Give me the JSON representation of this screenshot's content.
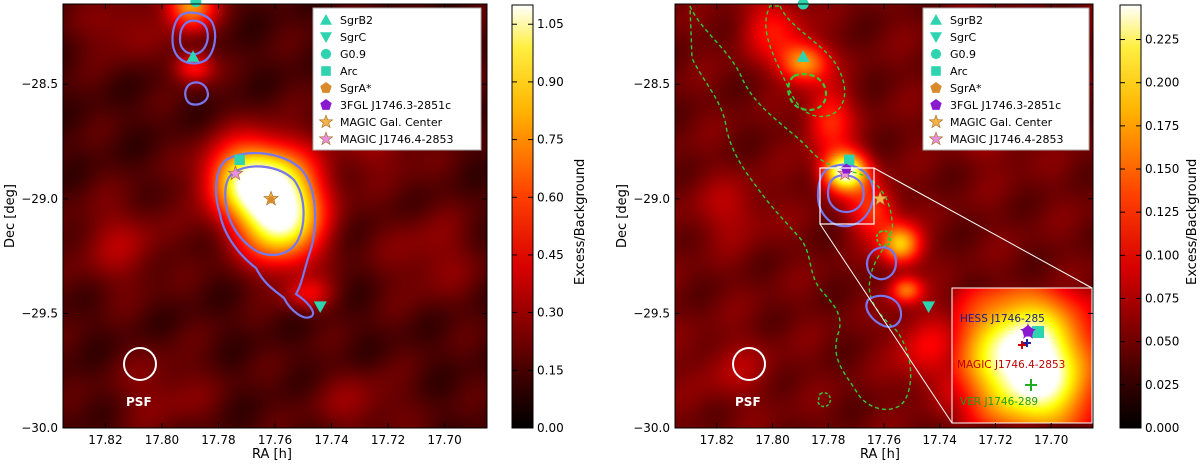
{
  "chart_data": [
    {
      "type": "heatmap",
      "title": "",
      "xlabel": "RA [h]",
      "ylabel": "Dec [deg]",
      "xlim": [
        17.835,
        17.685
      ],
      "ylim": [
        -30.0,
        -28.15
      ],
      "x_ticks": [
        "17.82",
        "17.80",
        "17.78",
        "17.76",
        "17.74",
        "17.72",
        "17.70"
      ],
      "y_ticks": [
        "−28.5",
        "−29.0",
        "−29.5",
        "−30.0"
      ],
      "x_tick_values": [
        17.82,
        17.8,
        17.78,
        17.76,
        17.74,
        17.72,
        17.7
      ],
      "y_tick_values": [
        -28.5,
        -29.0,
        -29.5,
        -30.0
      ],
      "colorbar": {
        "label": "Excess/Background",
        "min": 0.0,
        "max": 1.1,
        "ticks": [
          "0.00",
          "0.15",
          "0.30",
          "0.45",
          "0.60",
          "0.75",
          "0.90",
          "1.05"
        ],
        "tick_values": [
          0.0,
          0.15,
          0.3,
          0.45,
          0.6,
          0.75,
          0.9,
          1.05
        ]
      },
      "markers": [
        {
          "name": "SgrB2",
          "ra": 17.789,
          "dec": -28.38,
          "shape": "triangle-up",
          "color": "#2ed4b0"
        },
        {
          "name": "SgrC",
          "ra": 17.744,
          "dec": -29.47,
          "shape": "triangle-down",
          "color": "#2ed4b0"
        },
        {
          "name": "G0.9",
          "ra": 17.788,
          "dec": -28.14,
          "shape": "circle",
          "color": "#2ed4b0"
        },
        {
          "name": "Arc",
          "ra": 17.7725,
          "dec": -28.83,
          "shape": "square",
          "color": "#2ed4b0"
        },
        {
          "name": "MAGIC Gal. Center",
          "ra": 17.7614,
          "dec": -29.0,
          "shape": "star",
          "color": "#f5b14a"
        },
        {
          "name": "MAGIC J1746.4-2853",
          "ra": 17.774,
          "dec": -28.89,
          "shape": "star",
          "color": "#e890e0"
        }
      ],
      "legend": {
        "placement": "top-right",
        "entries": [
          "SgrB2",
          "SgrC",
          "G0.9",
          "Arc",
          "SgrA*",
          "3FGL J1746.3-2851c",
          "MAGIC Gal. Center",
          "MAGIC J1746.4-2853"
        ]
      },
      "psf_label": "PSF",
      "blobs": [
        {
          "ra": 17.76,
          "dec": -29.0,
          "sigma_ra": 0.011,
          "sigma_dec": 0.15,
          "amp": 1.0
        },
        {
          "ra": 17.772,
          "dec": -28.9,
          "sigma_ra": 0.01,
          "sigma_dec": 0.11,
          "amp": 0.55
        },
        {
          "ra": 17.756,
          "dec": -29.15,
          "sigma_ra": 0.009,
          "sigma_dec": 0.12,
          "amp": 0.35
        },
        {
          "ra": 17.79,
          "dec": -28.14,
          "sigma_ra": 0.006,
          "sigma_dec": 0.08,
          "amp": 0.65
        },
        {
          "ra": 17.789,
          "dec": -28.42,
          "sigma_ra": 0.005,
          "sigma_dec": 0.05,
          "amp": 0.35
        },
        {
          "ra": 17.748,
          "dec": -29.42,
          "sigma_ra": 0.006,
          "sigma_dec": 0.05,
          "amp": 0.25
        },
        {
          "ra": 17.815,
          "dec": -28.25,
          "sigma_ra": 0.01,
          "sigma_dec": 0.1,
          "amp": 0.14
        },
        {
          "ra": 17.722,
          "dec": -28.75,
          "sigma_ra": 0.012,
          "sigma_dec": 0.12,
          "amp": 0.14
        },
        {
          "ra": 17.815,
          "dec": -29.2,
          "sigma_ra": 0.012,
          "sigma_dec": 0.14,
          "amp": 0.16
        },
        {
          "ra": 17.705,
          "dec": -29.25,
          "sigma_ra": 0.012,
          "sigma_dec": 0.14,
          "amp": 0.13
        },
        {
          "ra": 17.8,
          "dec": -29.85,
          "sigma_ra": 0.012,
          "sigma_dec": 0.12,
          "amp": 0.12
        },
        {
          "ra": 17.73,
          "dec": -29.9,
          "sigma_ra": 0.012,
          "sigma_dec": 0.1,
          "amp": 0.12
        }
      ]
    },
    {
      "type": "heatmap",
      "title": "",
      "xlabel": "RA [h]",
      "ylabel": "Dec [deg]",
      "xlim": [
        17.835,
        17.685
      ],
      "ylim": [
        -30.0,
        -28.15
      ],
      "x_ticks": [
        "17.82",
        "17.80",
        "17.78",
        "17.76",
        "17.74",
        "17.72",
        "17.70"
      ],
      "y_ticks": [
        "−28.5",
        "−29.0",
        "−29.5",
        "−30.0"
      ],
      "x_tick_values": [
        17.82,
        17.8,
        17.78,
        17.76,
        17.74,
        17.72,
        17.7
      ],
      "y_tick_values": [
        -28.5,
        -29.0,
        -29.5,
        -30.0
      ],
      "colorbar": {
        "label": "Excess/Background",
        "min": 0.0,
        "max": 0.245,
        "ticks": [
          "0.000",
          "0.025",
          "0.050",
          "0.075",
          "0.100",
          "0.125",
          "0.150",
          "0.175",
          "0.200",
          "0.225"
        ],
        "tick_values": [
          0.0,
          0.025,
          0.05,
          0.075,
          0.1,
          0.125,
          0.15,
          0.175,
          0.2,
          0.225
        ]
      },
      "markers": [
        {
          "name": "SgrB2",
          "ra": 17.789,
          "dec": -28.38,
          "shape": "triangle-up",
          "color": "#2ed4b0"
        },
        {
          "name": "SgrC",
          "ra": 17.744,
          "dec": -29.47,
          "shape": "triangle-down",
          "color": "#2ed4b0"
        },
        {
          "name": "G0.9",
          "ra": 17.789,
          "dec": -28.15,
          "shape": "circle",
          "color": "#2ed4b0"
        },
        {
          "name": "Arc",
          "ra": 17.7725,
          "dec": -28.83,
          "shape": "square",
          "color": "#2ed4b0"
        },
        {
          "name": "MAGIC Gal. Center",
          "ra": 17.7614,
          "dec": -29.0,
          "shape": "star",
          "color": "#f5b14a"
        },
        {
          "name": "MAGIC J1746.4-2853",
          "ra": 17.774,
          "dec": -28.89,
          "shape": "star",
          "color": "#e890e0"
        }
      ],
      "legend": {
        "placement": "top-right",
        "entries": [
          "SgrB2",
          "SgrC",
          "G0.9",
          "Arc",
          "SgrA*",
          "3FGL J1746.3-2851c",
          "MAGIC Gal. Center",
          "MAGIC J1746.4-2853"
        ]
      },
      "psf_label": "PSF",
      "inset_labels": [
        "HESS J1746-285",
        "MAGIC J1746.4-2853",
        "VER J1746-289"
      ],
      "blobs": [
        {
          "ra": 17.774,
          "dec": -28.88,
          "sigma_ra": 0.0055,
          "sigma_dec": 0.06,
          "amp": 1.0
        },
        {
          "ra": 17.789,
          "dec": -28.4,
          "sigma_ra": 0.006,
          "sigma_dec": 0.06,
          "amp": 0.55
        },
        {
          "ra": 17.754,
          "dec": -29.2,
          "sigma_ra": 0.005,
          "sigma_dec": 0.06,
          "amp": 0.65
        },
        {
          "ra": 17.752,
          "dec": -29.4,
          "sigma_ra": 0.004,
          "sigma_dec": 0.04,
          "amp": 0.45
        },
        {
          "ra": 17.764,
          "dec": -29.05,
          "sigma_ra": 0.006,
          "sigma_dec": 0.08,
          "amp": 0.35
        },
        {
          "ra": 17.78,
          "dec": -28.65,
          "sigma_ra": 0.006,
          "sigma_dec": 0.1,
          "amp": 0.32
        },
        {
          "ra": 17.8,
          "dec": -28.25,
          "sigma_ra": 0.008,
          "sigma_dec": 0.1,
          "amp": 0.25
        },
        {
          "ra": 17.745,
          "dec": -29.65,
          "sigma_ra": 0.008,
          "sigma_dec": 0.12,
          "amp": 0.22
        },
        {
          "ra": 17.728,
          "dec": -29.85,
          "sigma_ra": 0.008,
          "sigma_dec": 0.08,
          "amp": 0.18
        },
        {
          "ra": 17.815,
          "dec": -29.05,
          "sigma_ra": 0.01,
          "sigma_dec": 0.1,
          "amp": 0.12
        },
        {
          "ra": 17.72,
          "dec": -28.7,
          "sigma_ra": 0.01,
          "sigma_dec": 0.1,
          "amp": 0.1
        },
        {
          "ra": 17.815,
          "dec": -29.75,
          "sigma_ra": 0.01,
          "sigma_dec": 0.1,
          "amp": 0.1
        }
      ]
    }
  ]
}
